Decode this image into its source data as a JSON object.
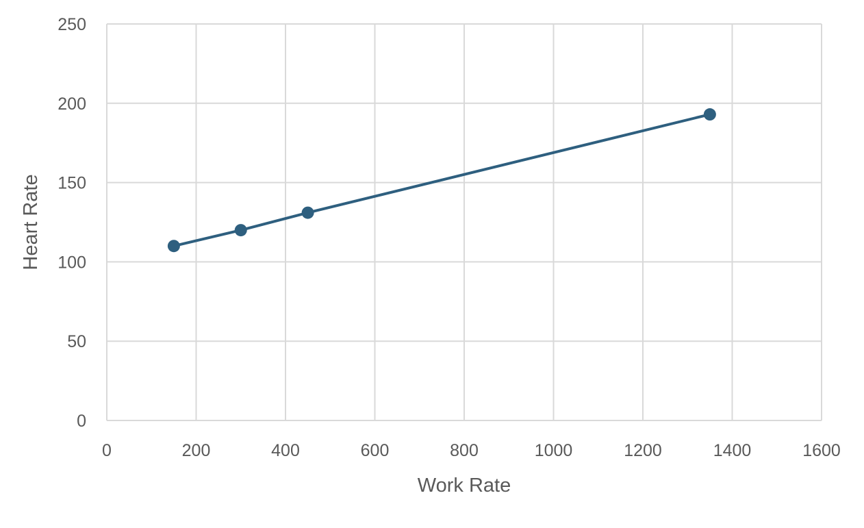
{
  "chart_data": {
    "type": "line",
    "title": "",
    "xlabel": "Work Rate",
    "ylabel": "Heart Rate",
    "xlim": [
      0,
      1600
    ],
    "ylim": [
      0,
      250
    ],
    "xticks": [
      0,
      200,
      400,
      600,
      800,
      1000,
      1200,
      1400,
      1600
    ],
    "yticks": [
      0,
      50,
      100,
      150,
      200,
      250
    ],
    "grid": true,
    "legend": "none",
    "series": [
      {
        "color": "#2e5f7f",
        "markers": true,
        "x": [
          150,
          300,
          450,
          1350
        ],
        "y": [
          110,
          120,
          131,
          193
        ]
      }
    ]
  }
}
